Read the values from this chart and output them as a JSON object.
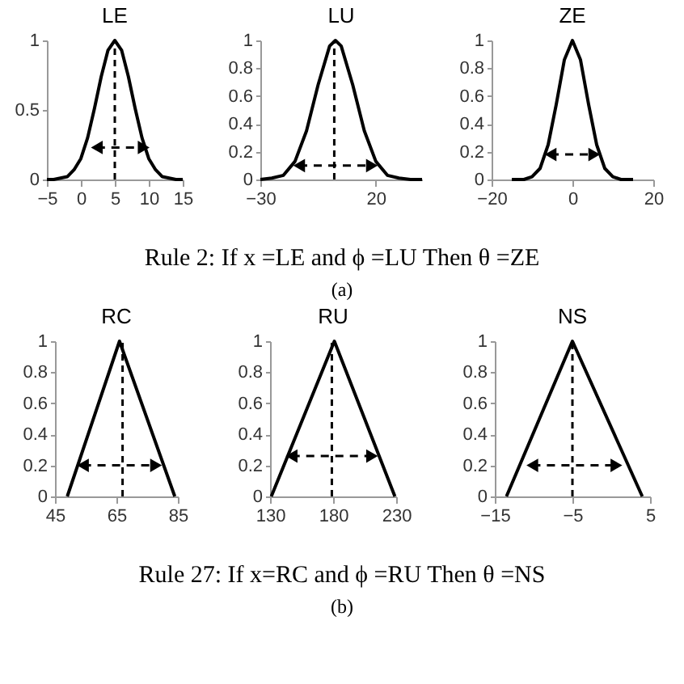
{
  "chart_data": [
    {
      "type": "line",
      "title": "LE",
      "x": [
        -5,
        -4,
        -3,
        -2,
        -1,
        0,
        1,
        2,
        3,
        4,
        5,
        6,
        7,
        8,
        9,
        10,
        11,
        12,
        13,
        14,
        15
      ],
      "values": [
        0,
        0,
        0.01,
        0.02,
        0.07,
        0.15,
        0.3,
        0.51,
        0.74,
        0.93,
        1,
        0.93,
        0.74,
        0.51,
        0.3,
        0.15,
        0.07,
        0.02,
        0.01,
        0,
        0
      ],
      "color": "#000000",
      "xlim": [
        -5,
        15
      ],
      "ylim": [
        0,
        1
      ],
      "xticks": [
        -5,
        0,
        5,
        10,
        15
      ],
      "yticks": [
        0,
        0.5,
        1
      ],
      "ref_lines": [
        {
          "axis": "x",
          "value": 5,
          "line_style": "dashed"
        }
      ],
      "annotations": [
        "Rule 2: If x =LE and ϕ =LU Then θ =ZE",
        "(a)"
      ]
    },
    {
      "type": "line",
      "title": "LU",
      "x": [
        -30,
        -25,
        -20,
        -15,
        -10,
        -5,
        0,
        2.5,
        5,
        10,
        15,
        20,
        25,
        30,
        35,
        40
      ],
      "values": [
        0,
        0.01,
        0.03,
        0.13,
        0.35,
        0.68,
        0.96,
        1,
        0.96,
        0.68,
        0.35,
        0.13,
        0.03,
        0.01,
        0,
        0
      ],
      "color": "#000000",
      "xlim": [
        -30,
        40
      ],
      "ylim": [
        0,
        1
      ],
      "xticks": [
        -30,
        20
      ],
      "yticks": [
        0,
        0.2,
        0.4,
        0.6,
        0.8,
        1
      ],
      "ref_lines": [
        {
          "axis": "x",
          "value": 2,
          "line_style": "dashed"
        }
      ]
    },
    {
      "type": "line",
      "title": "ZE",
      "x": [
        -15,
        -12,
        -10,
        -8,
        -6,
        -4,
        -2,
        0,
        2,
        4,
        6,
        8,
        10,
        12,
        15
      ],
      "values": [
        0,
        0,
        0.02,
        0.08,
        0.25,
        0.54,
        0.86,
        1,
        0.86,
        0.54,
        0.25,
        0.08,
        0.02,
        0,
        0
      ],
      "color": "#000000",
      "xlim": [
        -20,
        20
      ],
      "ylim": [
        0,
        1
      ],
      "xticks": [
        -20,
        0,
        20
      ],
      "yticks": [
        0,
        0.2,
        0.4,
        0.6,
        0.8,
        1
      ]
    },
    {
      "type": "line",
      "title": "RC",
      "x": [
        49,
        66,
        84
      ],
      "values": [
        0,
        1,
        0
      ],
      "color": "#000000",
      "xlim": [
        45,
        85
      ],
      "ylim": [
        0,
        1
      ],
      "xticks": [
        45,
        65,
        85
      ],
      "yticks": [
        0,
        0.2,
        0.4,
        0.6,
        0.8,
        1
      ],
      "ref_lines": [
        {
          "axis": "x",
          "value": 67,
          "line_style": "dashed"
        }
      ],
      "annotations": [
        "Rule 27: If x=RC and ϕ =RU Then θ =NS",
        "(b)"
      ]
    },
    {
      "type": "line",
      "title": "RU",
      "x": [
        131,
        181,
        229
      ],
      "values": [
        0,
        1,
        0
      ],
      "color": "#000000",
      "xlim": [
        130,
        230
      ],
      "ylim": [
        0,
        1
      ],
      "xticks": [
        130,
        180,
        230
      ],
      "yticks": [
        0,
        0.2,
        0.4,
        0.6,
        0.8,
        1
      ],
      "ref_lines": [
        {
          "axis": "x",
          "value": 179,
          "line_style": "dashed"
        }
      ]
    },
    {
      "type": "line",
      "title": "NS",
      "x": [
        -13.5,
        -5,
        4
      ],
      "values": [
        0,
        1,
        0
      ],
      "color": "#000000",
      "xlim": [
        -15,
        5
      ],
      "ylim": [
        0,
        1
      ],
      "xticks": [
        -15,
        -5,
        5
      ],
      "yticks": [
        0,
        0.2,
        0.4,
        0.6,
        0.8,
        1
      ],
      "ref_lines": [
        {
          "axis": "x",
          "value": -5,
          "line_style": "dashed"
        }
      ]
    }
  ]
}
